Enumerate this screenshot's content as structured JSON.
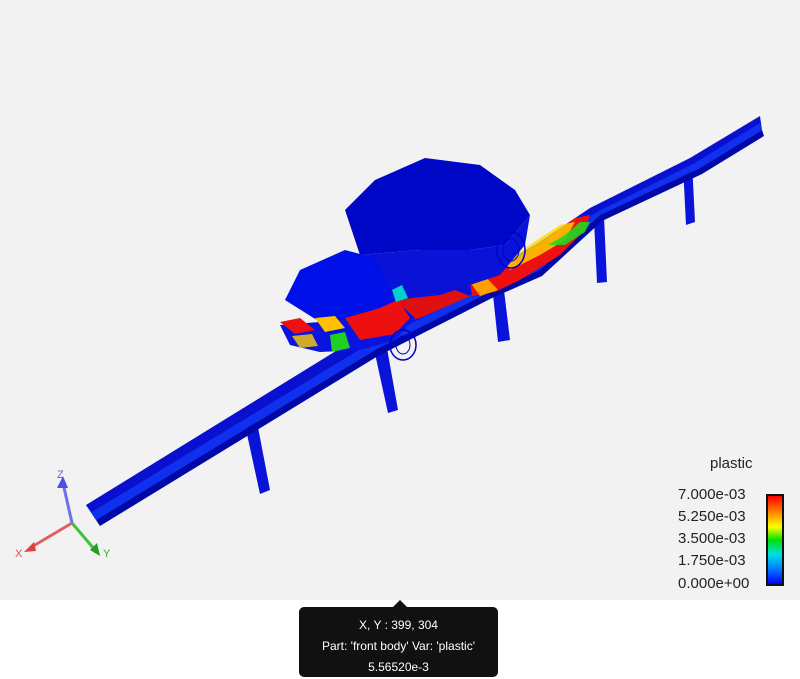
{
  "legend": {
    "variable": "plastic",
    "ticks": [
      "7.000e-03",
      "5.250e-03",
      "3.500e-03",
      "1.750e-03",
      "0.000e+00"
    ],
    "colors": [
      "#ff0000",
      "#ffff00",
      "#00e000",
      "#00e0e0",
      "#0000ff"
    ]
  },
  "axes": {
    "x": "X",
    "y": "Y",
    "z": "Z"
  },
  "tooltip": {
    "coords": "X, Y : 399, 304",
    "part": "Part: 'front body' Var: 'plastic'",
    "value": "5.56520e-3"
  }
}
